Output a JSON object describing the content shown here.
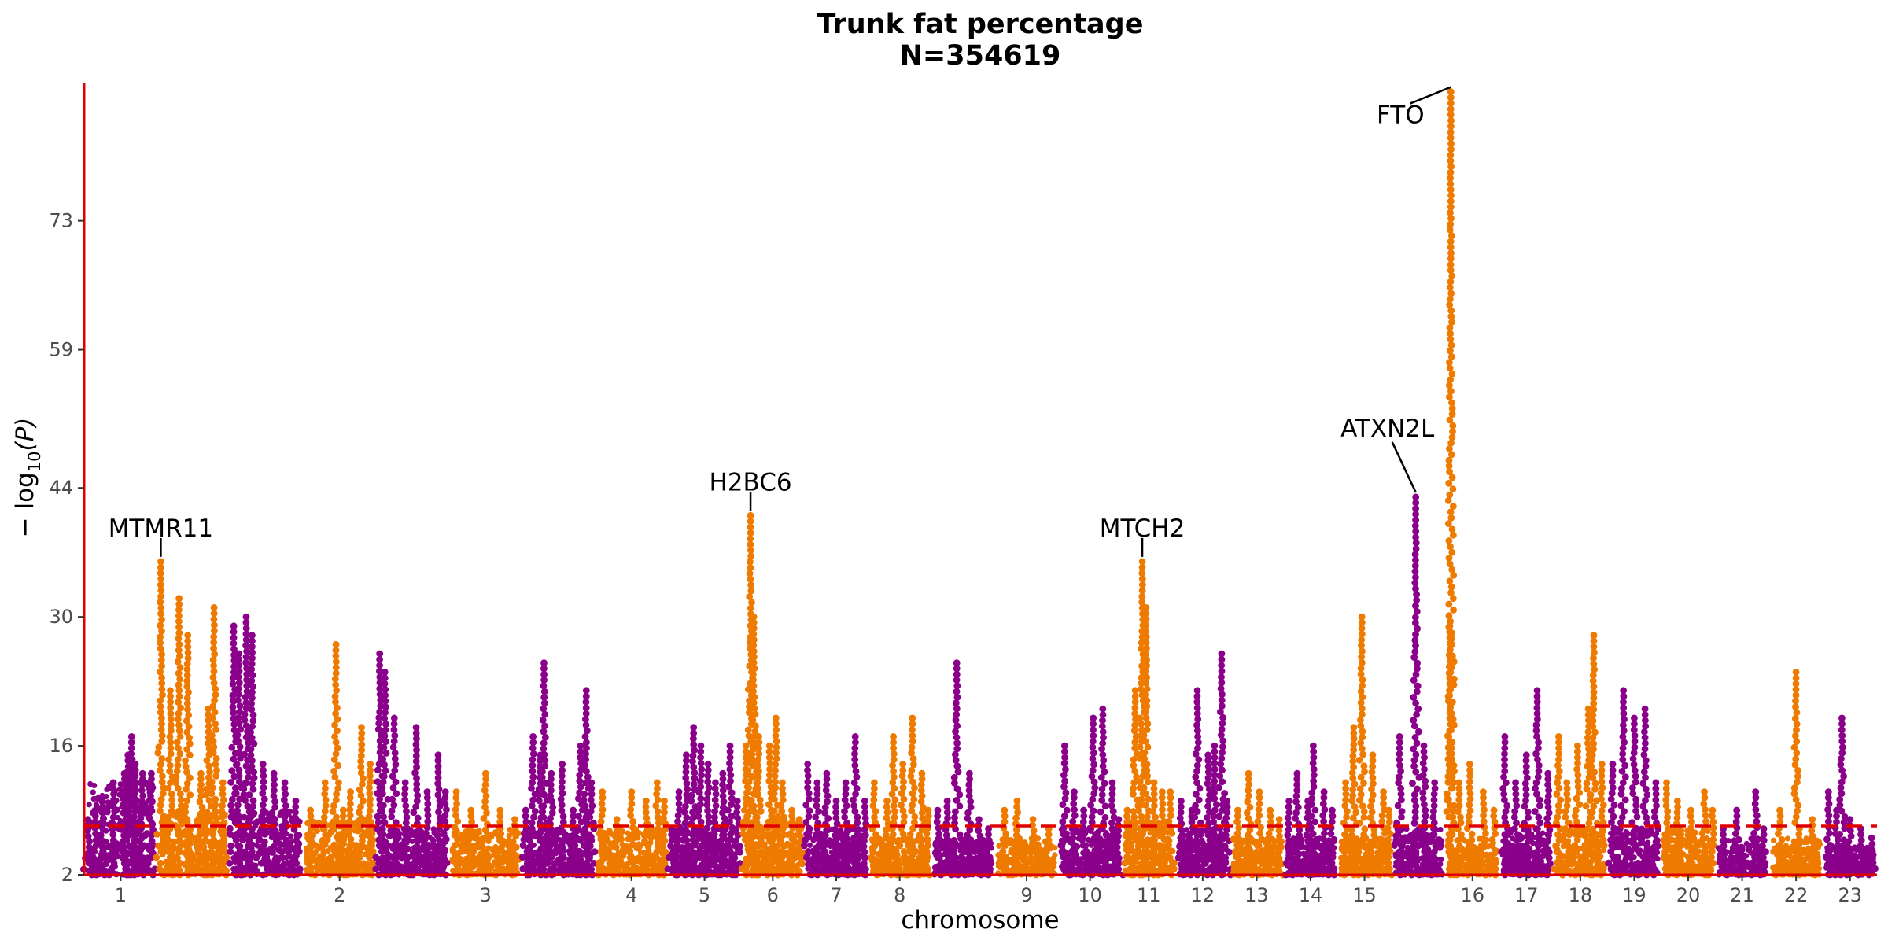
{
  "chart_data": {
    "type": "scatter",
    "subtype": "manhattan",
    "title": "Trunk fat percentage",
    "subtitle": "N=354619",
    "xlabel": "chromosome",
    "ylabel": "− log10(P)",
    "ylabel_main": "− log",
    "ylabel_sub": "10",
    "ylabel_tail": "(P)",
    "ylim": [
      2,
      88
    ],
    "yticks": [
      2,
      16,
      30,
      44,
      59,
      73
    ],
    "significance_threshold": 7.3,
    "grid": false,
    "colors": {
      "odd": "#8b008b",
      "even": "#ef7a00",
      "threshold": "#e00000",
      "axis": "#e00000"
    },
    "chromosomes": [
      {
        "label": "1",
        "background": 12,
        "peaks": [
          [
            0.05,
            8
          ],
          [
            0.15,
            9
          ],
          [
            0.25,
            10
          ],
          [
            0.4,
            12
          ],
          [
            0.55,
            13
          ],
          [
            0.6,
            15
          ],
          [
            0.65,
            17
          ],
          [
            0.7,
            14
          ],
          [
            0.8,
            13
          ],
          [
            0.92,
            13
          ]
        ]
      },
      {
        "label": "",
        "background": 9,
        "peaks": [
          [
            0.05,
            36
          ],
          [
            0.18,
            22
          ],
          [
            0.3,
            32
          ],
          [
            0.42,
            28
          ],
          [
            0.6,
            13
          ],
          [
            0.7,
            20
          ],
          [
            0.78,
            31
          ],
          [
            0.9,
            12
          ]
        ]
      },
      {
        "label": "",
        "background": 9,
        "peaks": [
          [
            0.05,
            29
          ],
          [
            0.12,
            26
          ],
          [
            0.22,
            30
          ],
          [
            0.3,
            28
          ],
          [
            0.45,
            14
          ],
          [
            0.6,
            13
          ],
          [
            0.75,
            12
          ],
          [
            0.9,
            10
          ]
        ]
      },
      {
        "label": "2",
        "background": 8,
        "peaks": [
          [
            0.1,
            9
          ],
          [
            0.3,
            12
          ],
          [
            0.45,
            27
          ],
          [
            0.55,
            9
          ],
          [
            0.65,
            11
          ],
          [
            0.8,
            18
          ],
          [
            0.92,
            14
          ]
        ]
      },
      {
        "label": "",
        "background": 7,
        "peaks": [
          [
            0.05,
            26
          ],
          [
            0.12,
            24
          ],
          [
            0.25,
            19
          ],
          [
            0.4,
            12
          ],
          [
            0.55,
            18
          ],
          [
            0.7,
            11
          ],
          [
            0.85,
            15
          ],
          [
            0.95,
            11
          ]
        ]
      },
      {
        "label": "3",
        "background": 7,
        "peaks": [
          [
            0.1,
            11
          ],
          [
            0.3,
            9
          ],
          [
            0.5,
            13
          ],
          [
            0.7,
            9
          ],
          [
            0.9,
            8
          ]
        ]
      },
      {
        "label": "",
        "background": 7,
        "peaks": [
          [
            0.05,
            9
          ],
          [
            0.15,
            17
          ],
          [
            0.25,
            15
          ],
          [
            0.3,
            25
          ],
          [
            0.4,
            13
          ],
          [
            0.55,
            14
          ],
          [
            0.7,
            9
          ],
          [
            0.8,
            16
          ],
          [
            0.88,
            22
          ],
          [
            0.95,
            12
          ]
        ]
      },
      {
        "label": "4",
        "background": 7,
        "peaks": [
          [
            0.1,
            11
          ],
          [
            0.3,
            8
          ],
          [
            0.5,
            11
          ],
          [
            0.7,
            10
          ],
          [
            0.85,
            12
          ],
          [
            0.95,
            10
          ]
        ]
      },
      {
        "label": "5",
        "background": 7,
        "peaks": [
          [
            0.05,
            7
          ],
          [
            0.15,
            11
          ],
          [
            0.25,
            15
          ],
          [
            0.35,
            18
          ],
          [
            0.45,
            16
          ],
          [
            0.55,
            14
          ],
          [
            0.65,
            12
          ],
          [
            0.75,
            13
          ],
          [
            0.85,
            16
          ],
          [
            0.95,
            10
          ]
        ]
      },
      {
        "label": "6",
        "background": 8,
        "peaks": [
          [
            0.08,
            16
          ],
          [
            0.15,
            41
          ],
          [
            0.2,
            30
          ],
          [
            0.28,
            17
          ],
          [
            0.45,
            16
          ],
          [
            0.55,
            19
          ],
          [
            0.65,
            12
          ],
          [
            0.8,
            9
          ],
          [
            0.92,
            8
          ]
        ]
      },
      {
        "label": "7",
        "background": 7,
        "peaks": [
          [
            0.05,
            14
          ],
          [
            0.2,
            12
          ],
          [
            0.35,
            13
          ],
          [
            0.5,
            10
          ],
          [
            0.65,
            12
          ],
          [
            0.8,
            17
          ],
          [
            0.95,
            10
          ]
        ]
      },
      {
        "label": "8",
        "background": 6,
        "peaks": [
          [
            0.1,
            12
          ],
          [
            0.3,
            10
          ],
          [
            0.4,
            17
          ],
          [
            0.55,
            14
          ],
          [
            0.7,
            19
          ],
          [
            0.85,
            13
          ],
          [
            0.95,
            9
          ]
        ]
      },
      {
        "label": "",
        "background": 6,
        "peaks": [
          [
            0.1,
            9
          ],
          [
            0.25,
            10
          ],
          [
            0.4,
            25
          ],
          [
            0.6,
            13
          ],
          [
            0.75,
            8
          ],
          [
            0.9,
            7
          ]
        ]
      },
      {
        "label": "9",
        "background": 6,
        "peaks": [
          [
            0.15,
            9
          ],
          [
            0.35,
            10
          ],
          [
            0.6,
            8
          ],
          [
            0.85,
            7
          ]
        ]
      },
      {
        "label": "10",
        "background": 7,
        "peaks": [
          [
            0.1,
            16
          ],
          [
            0.25,
            11
          ],
          [
            0.4,
            9
          ],
          [
            0.55,
            19
          ],
          [
            0.7,
            20
          ],
          [
            0.85,
            12
          ],
          [
            0.95,
            8
          ]
        ]
      },
      {
        "label": "11",
        "background": 8,
        "peaks": [
          [
            0.1,
            9
          ],
          [
            0.25,
            22
          ],
          [
            0.38,
            36
          ],
          [
            0.45,
            31
          ],
          [
            0.6,
            12
          ],
          [
            0.75,
            11
          ],
          [
            0.9,
            11
          ]
        ]
      },
      {
        "label": "12",
        "background": 7,
        "peaks": [
          [
            0.1,
            10
          ],
          [
            0.3,
            9
          ],
          [
            0.4,
            22
          ],
          [
            0.6,
            15
          ],
          [
            0.72,
            16
          ],
          [
            0.85,
            26
          ],
          [
            0.95,
            10
          ]
        ]
      },
      {
        "label": "13",
        "background": 6,
        "peaks": [
          [
            0.15,
            9
          ],
          [
            0.35,
            13
          ],
          [
            0.55,
            11
          ],
          [
            0.75,
            9
          ],
          [
            0.92,
            8
          ]
        ]
      },
      {
        "label": "14",
        "background": 6,
        "peaks": [
          [
            0.1,
            10
          ],
          [
            0.25,
            13
          ],
          [
            0.45,
            10
          ],
          [
            0.55,
            16
          ],
          [
            0.75,
            11
          ],
          [
            0.9,
            9
          ]
        ]
      },
      {
        "label": "15",
        "background": 6,
        "peaks": [
          [
            0.15,
            12
          ],
          [
            0.3,
            18
          ],
          [
            0.45,
            30
          ],
          [
            0.65,
            15
          ],
          [
            0.85,
            11
          ],
          [
            0.95,
            9
          ]
        ]
      },
      {
        "label": "",
        "background": 7,
        "peaks": [
          [
            0.15,
            17
          ],
          [
            0.45,
            43
          ],
          [
            0.6,
            16
          ],
          [
            0.8,
            12
          ]
        ]
      },
      {
        "label": "16",
        "background": 6,
        "peaks": [
          [
            0.08,
            29
          ],
          [
            0.1,
            87
          ],
          [
            0.25,
            12
          ],
          [
            0.45,
            14
          ],
          [
            0.7,
            11
          ],
          [
            0.9,
            9
          ]
        ]
      },
      {
        "label": "17",
        "background": 7,
        "peaks": [
          [
            0.1,
            17
          ],
          [
            0.3,
            12
          ],
          [
            0.5,
            15
          ],
          [
            0.7,
            22
          ],
          [
            0.9,
            13
          ]
        ]
      },
      {
        "label": "18",
        "background": 7,
        "peaks": [
          [
            0.1,
            17
          ],
          [
            0.25,
            12
          ],
          [
            0.45,
            16
          ],
          [
            0.65,
            20
          ],
          [
            0.75,
            28
          ],
          [
            0.9,
            14
          ]
        ]
      },
      {
        "label": "19",
        "background": 7,
        "peaks": [
          [
            0.1,
            14
          ],
          [
            0.3,
            22
          ],
          [
            0.5,
            19
          ],
          [
            0.7,
            20
          ],
          [
            0.9,
            12
          ]
        ]
      },
      {
        "label": "20",
        "background": 7,
        "peaks": [
          [
            0.1,
            12
          ],
          [
            0.3,
            10
          ],
          [
            0.55,
            9
          ],
          [
            0.8,
            11
          ],
          [
            0.95,
            9
          ]
        ]
      },
      {
        "label": "21",
        "background": 6,
        "peaks": [
          [
            0.15,
            7
          ],
          [
            0.4,
            9
          ],
          [
            0.75,
            11
          ],
          [
            0.9,
            7
          ]
        ]
      },
      {
        "label": "22",
        "background": 6,
        "peaks": [
          [
            0.2,
            9
          ],
          [
            0.5,
            24
          ],
          [
            0.8,
            8
          ]
        ]
      },
      {
        "label": "23",
        "background": 5,
        "peaks": [
          [
            0.1,
            11
          ],
          [
            0.25,
            9
          ],
          [
            0.35,
            19
          ],
          [
            0.5,
            8
          ],
          [
            0.7,
            7
          ],
          [
            0.9,
            6
          ]
        ]
      }
    ],
    "annotations": [
      {
        "text": "MTMR11",
        "chrom_index": 1,
        "pos": 0.05,
        "y": 36
      },
      {
        "text": "H2BC6",
        "chrom_index": 9,
        "pos": 0.15,
        "y": 41
      },
      {
        "text": "MTCH2",
        "chrom_index": 15,
        "pos": 0.38,
        "y": 36
      },
      {
        "text": "ATXN2L",
        "chrom_index": 20,
        "pos": 0.45,
        "y": 43
      },
      {
        "text": "FTO",
        "chrom_index": 21,
        "pos": 0.1,
        "y": 87
      }
    ]
  }
}
